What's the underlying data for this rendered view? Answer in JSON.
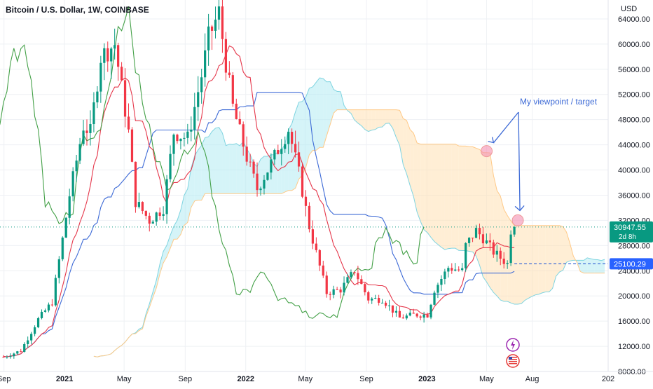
{
  "header": {
    "title": "Bitcoin / U.S. Dollar, 1W, COINBASE"
  },
  "y_axis": {
    "unit": "USD",
    "ticks": [
      "64000.00",
      "60000.00",
      "56000.00",
      "52000.00",
      "48000.00",
      "44000.00",
      "40000.00",
      "36000.00",
      "32000.00",
      "28000.00",
      "24000.00",
      "20000.00",
      "16000.00",
      "12000.00",
      "8000.00"
    ],
    "tick_values": [
      64000,
      60000,
      56000,
      52000,
      48000,
      44000,
      40000,
      36000,
      32000,
      28000,
      24000,
      20000,
      16000,
      12000,
      8000
    ]
  },
  "x_axis": {
    "ticks": [
      "Sep",
      "2021",
      "May",
      "Sep",
      "2022",
      "May",
      "Sep",
      "2023",
      "May",
      "Aug",
      "202"
    ],
    "bold_ticks": [
      "2021",
      "2022",
      "2023"
    ]
  },
  "price_badge": {
    "price": "30947.55",
    "countdown": "2d 8h",
    "color": "#089981"
  },
  "target_badge": {
    "price": "25100.29",
    "color": "#2962ff"
  },
  "annotation": {
    "text": "My viewpoint / target",
    "color": "#2962ff"
  },
  "colors": {
    "up": "#089981",
    "down": "#f23645",
    "conversion_line": "#e5364a",
    "base_line": "#3d6ad6",
    "lagging_span": "#43a047",
    "cloud_bull": "#b3ebf2",
    "cloud_bear": "#ffe0b2"
  },
  "icons": {
    "event_top": "lightning-icon",
    "event_bottom": "us-flag-icon"
  },
  "chart_data": {
    "type": "candlestick",
    "timeframe": "1W",
    "symbol": "BTCUSD",
    "exchange": "COINBASE",
    "ylim": [
      8000,
      67000
    ],
    "x_range": [
      "2020-08-24",
      "2024-01-01"
    ],
    "last_price": 30947.55,
    "horizontal_level": 25100.29,
    "price_path": [
      {
        "date": "2020-08-31",
        "close": 10300
      },
      {
        "date": "2020-10-05",
        "close": 11300
      },
      {
        "date": "2020-11-09",
        "close": 16300
      },
      {
        "date": "2020-12-07",
        "close": 19000
      },
      {
        "date": "2020-12-28",
        "close": 29000
      },
      {
        "date": "2021-01-11",
        "close": 36000
      },
      {
        "date": "2021-02-08",
        "close": 47000
      },
      {
        "date": "2021-02-22",
        "close": 46000
      },
      {
        "date": "2021-03-15",
        "close": 58000
      },
      {
        "date": "2021-04-12",
        "close": 60000
      },
      {
        "date": "2021-05-10",
        "close": 46000
      },
      {
        "date": "2021-05-24",
        "close": 35000
      },
      {
        "date": "2021-06-21",
        "close": 32000
      },
      {
        "date": "2021-07-19",
        "close": 34000
      },
      {
        "date": "2021-08-09",
        "close": 46000
      },
      {
        "date": "2021-09-06",
        "close": 45000
      },
      {
        "date": "2021-10-04",
        "close": 55000
      },
      {
        "date": "2021-10-18",
        "close": 61000
      },
      {
        "date": "2021-11-08",
        "close": 65000
      },
      {
        "date": "2021-11-22",
        "close": 57000
      },
      {
        "date": "2021-12-06",
        "close": 50000
      },
      {
        "date": "2022-01-03",
        "close": 42000
      },
      {
        "date": "2022-01-24",
        "close": 37000
      },
      {
        "date": "2022-02-14",
        "close": 40000
      },
      {
        "date": "2022-03-28",
        "close": 46500
      },
      {
        "date": "2022-04-18",
        "close": 39500
      },
      {
        "date": "2022-05-09",
        "close": 31000
      },
      {
        "date": "2022-06-13",
        "close": 20500
      },
      {
        "date": "2022-07-11",
        "close": 21000
      },
      {
        "date": "2022-08-08",
        "close": 24000
      },
      {
        "date": "2022-09-05",
        "close": 19500
      },
      {
        "date": "2022-10-03",
        "close": 19500
      },
      {
        "date": "2022-11-07",
        "close": 16500
      },
      {
        "date": "2022-12-05",
        "close": 17000
      },
      {
        "date": "2023-01-02",
        "close": 17000
      },
      {
        "date": "2023-01-16",
        "close": 21000
      },
      {
        "date": "2023-02-13",
        "close": 24500
      },
      {
        "date": "2023-03-13",
        "close": 24000
      },
      {
        "date": "2023-03-20",
        "close": 28000
      },
      {
        "date": "2023-04-10",
        "close": 30400
      },
      {
        "date": "2023-04-24",
        "close": 29200
      },
      {
        "date": "2023-05-15",
        "close": 27000
      },
      {
        "date": "2023-06-12",
        "close": 25100
      },
      {
        "date": "2023-06-19",
        "close": 30500
      },
      {
        "date": "2023-06-26",
        "close": 30947.55
      }
    ],
    "target_points": [
      {
        "label": "viewpoint",
        "date": "2023-04-10",
        "price": 43000
      },
      {
        "label": "target",
        "date": "2023-06-26",
        "price": 32000
      }
    ]
  }
}
